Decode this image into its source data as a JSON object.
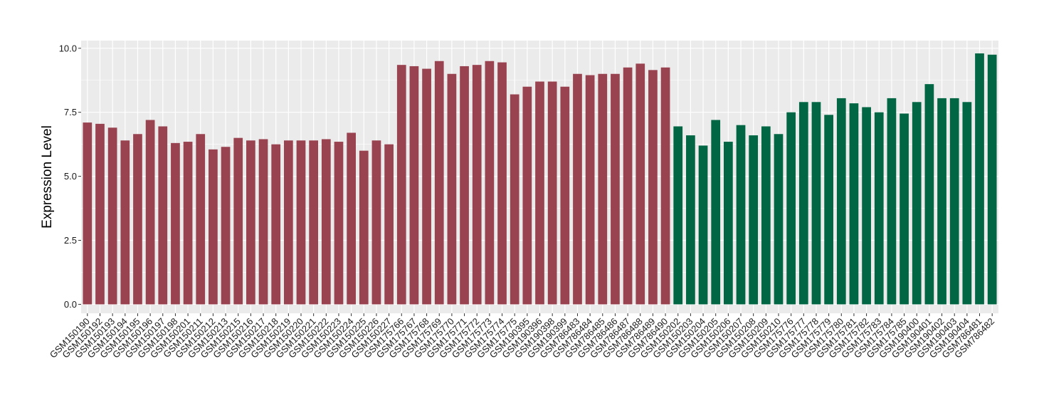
{
  "chart_data": {
    "type": "bar",
    "title": "",
    "xlabel": "",
    "ylabel": "Expression Level",
    "ylim": [
      -0.35,
      10.3
    ],
    "yticks": [
      0.0,
      2.5,
      5.0,
      7.5,
      10.0
    ],
    "ytick_labels": [
      "0.0",
      "2.5",
      "5.0",
      "7.5",
      "10.0"
    ],
    "grid": true,
    "legend": "none",
    "colors": {
      "group_a": "#9a4350",
      "group_b": "#006644",
      "panel_background": "#ebebeb",
      "grid": "#ffffff"
    },
    "categories": [
      "GSM150190",
      "GSM150192",
      "GSM150193",
      "GSM150194",
      "GSM150195",
      "GSM150196",
      "GSM150197",
      "GSM150198",
      "GSM150201",
      "GSM150211",
      "GSM150212",
      "GSM150213",
      "GSM150215",
      "GSM150216",
      "GSM150217",
      "GSM150218",
      "GSM150219",
      "GSM150220",
      "GSM150221",
      "GSM150222",
      "GSM150223",
      "GSM150224",
      "GSM150225",
      "GSM150226",
      "GSM150227",
      "GSM175766",
      "GSM175767",
      "GSM175768",
      "GSM175769",
      "GSM175770",
      "GSM175771",
      "GSM175772",
      "GSM175773",
      "GSM175774",
      "GSM175775",
      "GSM190395",
      "GSM190396",
      "GSM190398",
      "GSM190399",
      "GSM786483",
      "GSM786484",
      "GSM786485",
      "GSM786486",
      "GSM786487",
      "GSM786488",
      "GSM786489",
      "GSM786490",
      "GSM150202",
      "GSM150203",
      "GSM150204",
      "GSM150205",
      "GSM150206",
      "GSM150207",
      "GSM150208",
      "GSM150209",
      "GSM150210",
      "GSM175776",
      "GSM175777",
      "GSM175778",
      "GSM175779",
      "GSM175780",
      "GSM175781",
      "GSM175782",
      "GSM175783",
      "GSM175784",
      "GSM175785",
      "GSM190400",
      "GSM190401",
      "GSM190402",
      "GSM190403",
      "GSM190404",
      "GSM786481",
      "GSM786482"
    ],
    "values": [
      7.1,
      7.05,
      6.9,
      6.4,
      6.65,
      7.2,
      6.95,
      6.3,
      6.35,
      6.65,
      6.05,
      6.15,
      6.5,
      6.4,
      6.45,
      6.25,
      6.4,
      6.4,
      6.4,
      6.45,
      6.35,
      6.7,
      6.0,
      6.4,
      6.25,
      9.35,
      9.3,
      9.2,
      9.5,
      9.0,
      9.3,
      9.35,
      9.5,
      9.45,
      8.2,
      8.5,
      8.7,
      8.7,
      8.5,
      9.0,
      8.95,
      9.0,
      9.0,
      9.25,
      9.4,
      9.15,
      9.25,
      6.95,
      6.6,
      6.2,
      7.2,
      6.35,
      7.0,
      6.6,
      6.95,
      6.65,
      7.5,
      7.9,
      7.9,
      7.4,
      8.05,
      7.85,
      7.7,
      7.5,
      8.05,
      7.45,
      7.9,
      8.6,
      8.05,
      8.05,
      7.9,
      9.8,
      9.75
    ],
    "series_groups": [
      "a",
      "a",
      "a",
      "a",
      "a",
      "a",
      "a",
      "a",
      "a",
      "a",
      "a",
      "a",
      "a",
      "a",
      "a",
      "a",
      "a",
      "a",
      "a",
      "a",
      "a",
      "a",
      "a",
      "a",
      "a",
      "a",
      "a",
      "a",
      "a",
      "a",
      "a",
      "a",
      "a",
      "a",
      "a",
      "a",
      "a",
      "a",
      "a",
      "a",
      "a",
      "a",
      "a",
      "a",
      "a",
      "a",
      "a",
      "b",
      "b",
      "b",
      "b",
      "b",
      "b",
      "b",
      "b",
      "b",
      "b",
      "b",
      "b",
      "b",
      "b",
      "b",
      "b",
      "b",
      "b",
      "b",
      "b",
      "b",
      "b",
      "b",
      "b",
      "b",
      "b"
    ]
  }
}
